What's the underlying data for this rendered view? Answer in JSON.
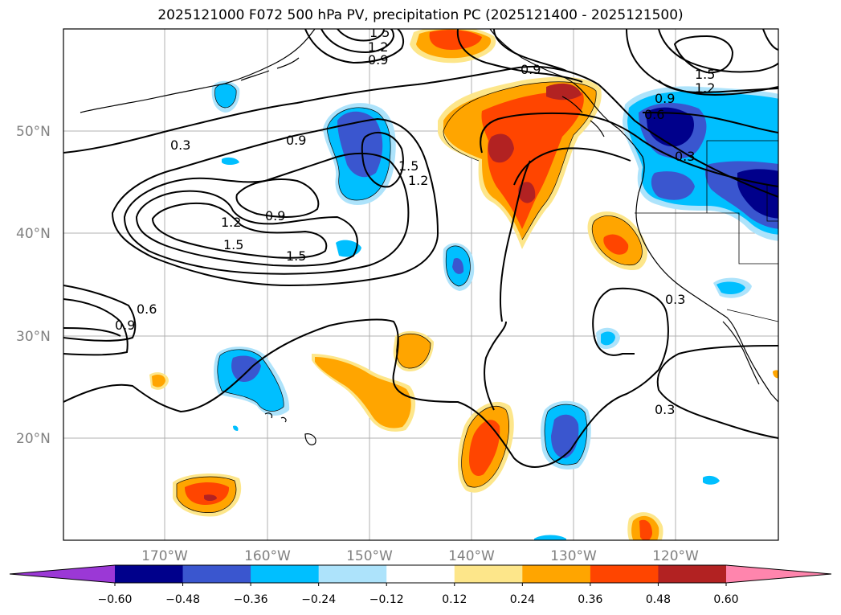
{
  "title": "2025121000 F072 500 hPa PV, precipitation PC (2025121400 - 2025121500)",
  "lat_labels": [
    "50°N",
    "40°N",
    "30°N",
    "20°N"
  ],
  "lon_labels": [
    "170°W",
    "160°W",
    "150°W",
    "140°W",
    "130°W",
    "120°W"
  ],
  "colorbar": {
    "tick_labels": [
      "−0.60",
      "−0.48",
      "−0.36",
      "−0.24",
      "−0.12",
      "0.12",
      "0.24",
      "0.36",
      "0.48",
      "0.60"
    ],
    "colors": [
      "#9b38d6",
      "#00008b",
      "#3a56cf",
      "#00bfff",
      "#ade3fb",
      "#ffffff",
      "#fde68a",
      "#ffa500",
      "#ff4500",
      "#b22222",
      "#ff85ad"
    ]
  },
  "contour_labels": [
    "1.5",
    "1.2",
    "0.9",
    "0.9",
    "1.5",
    "1.2",
    "0.3",
    "0.9",
    "1.5",
    "1.2",
    "1.2",
    "0.9",
    "1.5",
    "1.5",
    "0.9",
    "0.6",
    "0.3",
    "0.6",
    "0.9",
    "0.3",
    "0.3"
  ]
}
